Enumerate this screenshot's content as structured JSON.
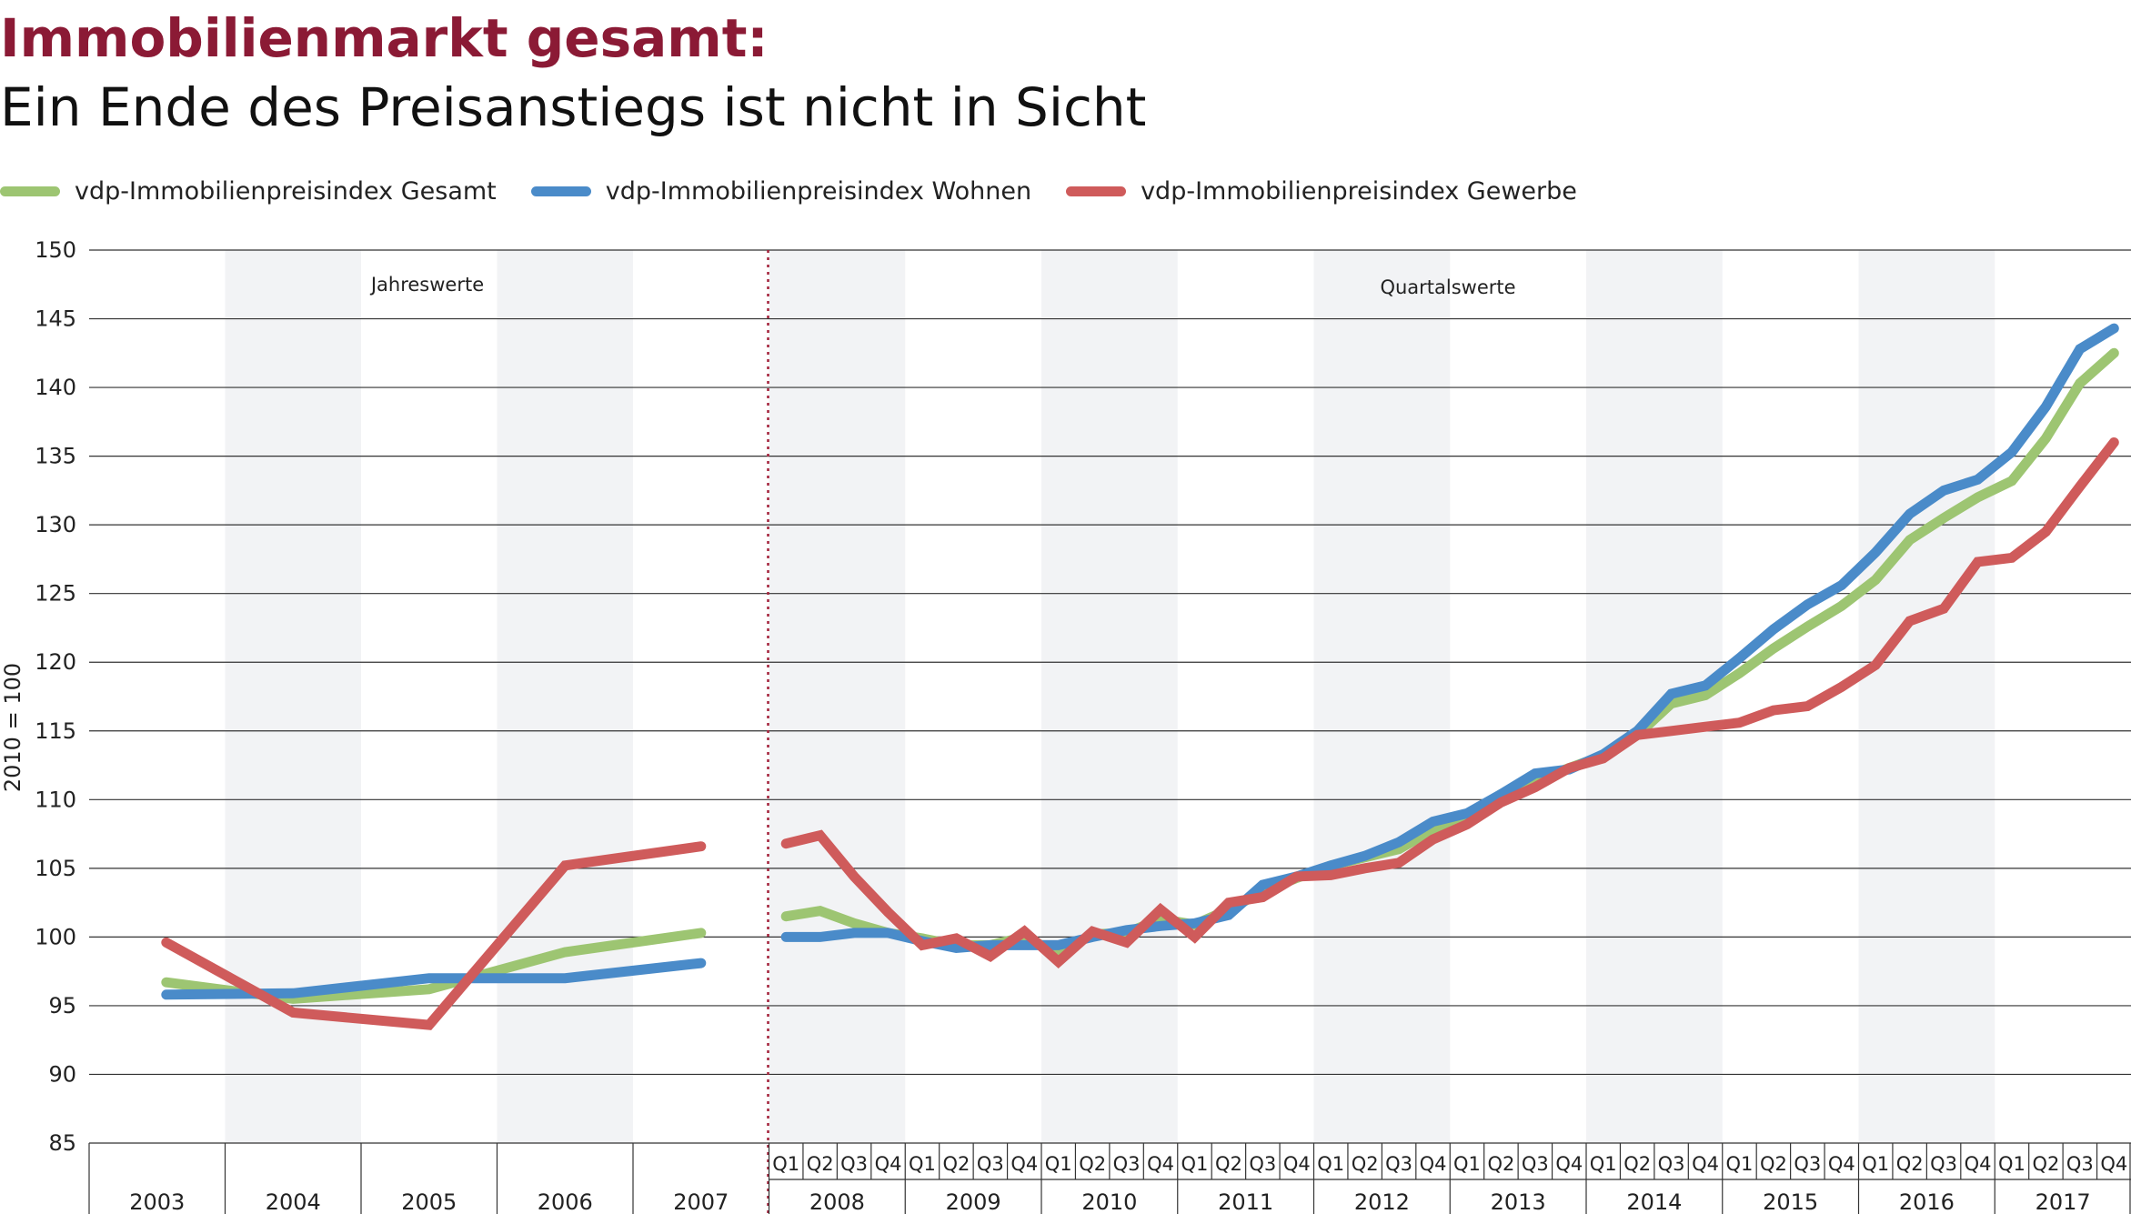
{
  "header": {
    "title": "Immobilienmarkt gesamt:",
    "subtitle": "Ein Ende des Preisanstiegs ist nicht in Sicht"
  },
  "chart_data": {
    "type": "line",
    "ylabel": "2010 = 100",
    "ylim": [
      85,
      150
    ],
    "yticks": [
      85,
      90,
      95,
      100,
      105,
      110,
      115,
      120,
      125,
      130,
      135,
      140,
      145,
      150
    ],
    "annotations": {
      "annual": "Jahreswerte",
      "quarterly": "Quartalswerte"
    },
    "annual_years": [
      "2003",
      "2004",
      "2005",
      "2006",
      "2007"
    ],
    "quarter_years": [
      "2008",
      "2009",
      "2010",
      "2011",
      "2012",
      "2013",
      "2014",
      "2015",
      "2016",
      "2017"
    ],
    "quarter_labels": [
      "Q1",
      "Q2",
      "Q3",
      "Q4"
    ],
    "series": [
      {
        "name": "vdp-Immobilienpreisindex Gesamt",
        "color": "#9dc572",
        "annual": [
          96.7,
          95.5,
          96.2,
          98.9,
          100.3
        ],
        "quarterly": [
          101.5,
          101.9,
          101.0,
          100.3,
          99.9,
          99.4,
          99.4,
          100.0,
          98.8,
          100.2,
          100.3,
          101.3,
          100.9,
          102.0,
          103.3,
          104.3,
          105.2,
          105.8,
          106.4,
          107.8,
          108.8,
          110.4,
          111.4,
          112.3,
          113.2,
          114.7,
          117.0,
          117.6,
          119.2,
          121.0,
          122.6,
          124.1,
          126.0,
          128.9,
          130.5,
          132.0,
          133.2,
          136.3,
          140.3,
          142.5
        ]
      },
      {
        "name": "vdp-Immobilienpreisindex Wohnen",
        "color": "#4a8bc9",
        "annual": [
          95.8,
          95.9,
          97.0,
          97.0,
          98.1
        ],
        "quarterly": [
          100.0,
          100.0,
          100.3,
          100.3,
          99.7,
          99.2,
          99.4,
          99.4,
          99.4,
          100.0,
          100.5,
          100.8,
          101.0,
          101.6,
          103.8,
          104.4,
          105.2,
          105.9,
          106.9,
          108.4,
          109.0,
          110.4,
          111.9,
          112.2,
          113.3,
          115.0,
          117.7,
          118.3,
          120.3,
          122.4,
          124.2,
          125.6,
          128.0,
          130.8,
          132.5,
          133.3,
          135.3,
          138.6,
          142.8,
          144.3
        ]
      },
      {
        "name": "vdp-Immobilienpreisindex Gewerbe",
        "color": "#cf5b5b",
        "annual": [
          99.6,
          94.5,
          93.6,
          105.2,
          106.6
        ],
        "quarterly": [
          106.8,
          107.4,
          104.4,
          101.8,
          99.4,
          99.9,
          98.6,
          100.4,
          98.2,
          100.4,
          99.6,
          102.0,
          100.0,
          102.5,
          102.9,
          104.4,
          104.5,
          105.0,
          105.4,
          107.1,
          108.2,
          109.8,
          110.9,
          112.3,
          113.0,
          114.7,
          115.0,
          115.3,
          115.6,
          116.5,
          116.8,
          118.2,
          119.8,
          123.0,
          123.9,
          127.3,
          127.6,
          129.5,
          132.8,
          136.0
        ]
      }
    ]
  }
}
